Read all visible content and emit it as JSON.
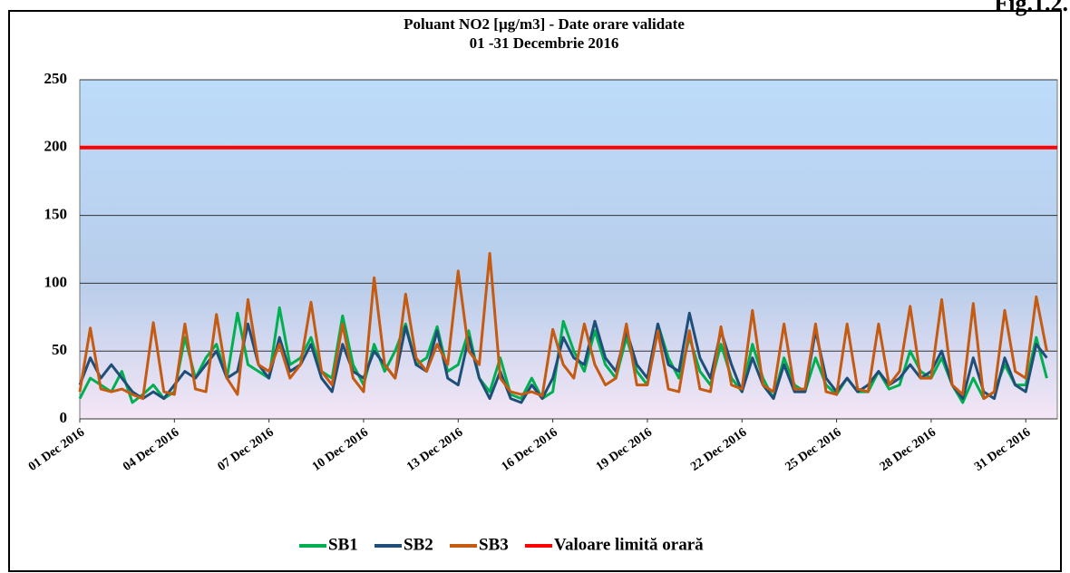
{
  "figure_label": "Fig.1.2.",
  "chart_data": {
    "type": "line",
    "title": "Poluant NO2 [µg/m3] - Date orare validate",
    "subtitle": "01 -31 Decembrie 2016",
    "x": [
      0,
      8,
      16,
      24,
      32,
      40,
      48,
      56,
      64,
      72,
      80,
      88,
      96,
      104,
      112,
      120,
      128,
      136,
      144,
      152,
      160,
      168,
      176,
      184,
      192,
      200,
      208,
      216,
      224,
      232,
      240,
      248,
      256,
      264,
      272,
      280,
      288,
      296,
      304,
      312,
      320,
      328,
      336,
      344,
      352,
      360,
      368,
      376,
      384,
      392,
      400,
      408,
      416,
      424,
      432,
      440,
      448,
      456,
      464,
      472,
      480,
      488,
      496,
      504,
      512,
      520,
      528,
      536,
      544,
      552,
      560,
      568,
      576,
      584,
      592,
      600,
      608,
      616,
      624,
      632,
      640,
      648,
      656,
      664,
      672,
      680,
      688,
      696,
      704,
      712,
      720,
      728,
      736
    ],
    "xlim": [
      0,
      744
    ],
    "xticks": [
      {
        "value": 0,
        "label": "01 Dec 2016"
      },
      {
        "value": 72,
        "label": "04 Dec 2016"
      },
      {
        "value": 144,
        "label": "07 Dec 2016"
      },
      {
        "value": 216,
        "label": "10 Dec 2016"
      },
      {
        "value": 288,
        "label": "13 Dec 2016"
      },
      {
        "value": 360,
        "label": "16 Dec 2016"
      },
      {
        "value": 432,
        "label": "19 Dec 2016"
      },
      {
        "value": 504,
        "label": "22 Dec 2016"
      },
      {
        "value": 576,
        "label": "25 Dec 2016"
      },
      {
        "value": 648,
        "label": "28 Dec 2016"
      },
      {
        "value": 720,
        "label": "31 Dec 2016"
      }
    ],
    "ylim": [
      0,
      250
    ],
    "yticks": [
      0,
      50,
      100,
      150,
      200,
      250
    ],
    "grid": true,
    "legend": "bottom",
    "series": [
      {
        "name": "SB1",
        "color": "#00b050",
        "values": [
          15,
          30,
          25,
          20,
          35,
          12,
          18,
          25,
          15,
          20,
          60,
          30,
          45,
          55,
          30,
          78,
          40,
          35,
          30,
          82,
          40,
          45,
          60,
          35,
          30,
          76,
          40,
          25,
          55,
          35,
          50,
          70,
          40,
          45,
          68,
          35,
          40,
          65,
          30,
          20,
          45,
          18,
          15,
          30,
          15,
          20,
          72,
          50,
          35,
          65,
          40,
          30,
          60,
          35,
          25,
          70,
          45,
          30,
          60,
          35,
          25,
          55,
          30,
          20,
          55,
          30,
          15,
          45,
          25,
          20,
          45,
          25,
          18,
          30,
          20,
          20,
          35,
          22,
          25,
          50,
          35,
          30,
          45,
          25,
          12,
          30,
          15,
          20,
          40,
          25,
          25,
          60,
          30
        ]
      },
      {
        "name": "SB2",
        "color": "#1f4e79",
        "values": [
          25,
          45,
          30,
          40,
          30,
          20,
          15,
          20,
          15,
          25,
          35,
          30,
          40,
          50,
          30,
          35,
          70,
          40,
          30,
          60,
          35,
          40,
          55,
          30,
          20,
          55,
          35,
          30,
          50,
          40,
          30,
          68,
          40,
          35,
          65,
          30,
          25,
          60,
          30,
          15,
          35,
          15,
          12,
          25,
          15,
          30,
          60,
          45,
          40,
          72,
          45,
          35,
          65,
          40,
          30,
          70,
          40,
          35,
          78,
          45,
          30,
          65,
          40,
          20,
          45,
          25,
          15,
          40,
          20,
          20,
          65,
          30,
          20,
          30,
          20,
          25,
          35,
          25,
          30,
          40,
          30,
          35,
          50,
          25,
          15,
          45,
          20,
          15,
          45,
          25,
          20,
          55,
          45
        ]
      },
      {
        "name": "SB3",
        "color": "#c55a11",
        "values": [
          20,
          67,
          22,
          20,
          22,
          18,
          15,
          71,
          20,
          18,
          70,
          22,
          20,
          77,
          30,
          18,
          88,
          40,
          35,
          55,
          30,
          40,
          86,
          35,
          25,
          70,
          30,
          20,
          104,
          40,
          30,
          92,
          45,
          35,
          55,
          40,
          109,
          50,
          40,
          122,
          30,
          20,
          18,
          20,
          17,
          66,
          40,
          30,
          70,
          40,
          25,
          30,
          70,
          25,
          25,
          65,
          22,
          20,
          65,
          22,
          20,
          68,
          25,
          22,
          80,
          25,
          20,
          70,
          22,
          22,
          70,
          20,
          18,
          70,
          22,
          20,
          70,
          25,
          35,
          83,
          30,
          30,
          88,
          25,
          18,
          85,
          15,
          20,
          80,
          35,
          30,
          90,
          50
        ]
      }
    ],
    "limit": {
      "name": "Valoare limită orară",
      "color": "#ff0000",
      "value": 200
    }
  }
}
